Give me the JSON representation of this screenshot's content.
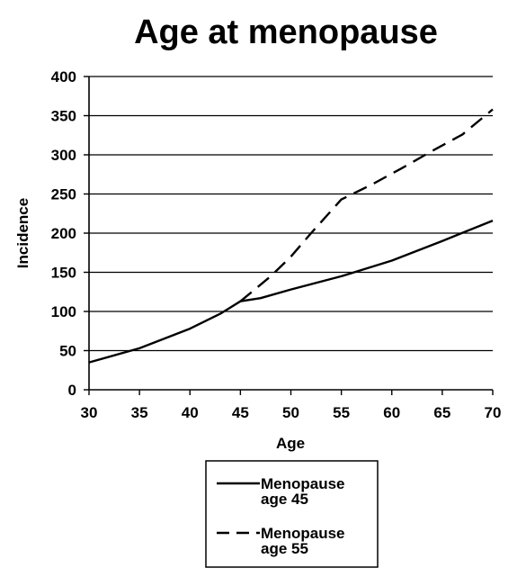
{
  "chart_data": {
    "type": "line",
    "title": "Age at menopause",
    "xlabel": "Age",
    "ylabel": "Incidence",
    "xlim": [
      30,
      70
    ],
    "ylim": [
      0,
      400
    ],
    "x_ticks": [
      30,
      35,
      40,
      45,
      50,
      55,
      60,
      65,
      70
    ],
    "y_ticks": [
      0,
      50,
      100,
      150,
      200,
      250,
      300,
      350,
      400
    ],
    "grid": "horizontal",
    "legend_position": "bottom",
    "series": [
      {
        "name": "Menopause age 45",
        "style": "solid",
        "color": "#000000",
        "x": [
          30,
          35,
          40,
          43,
          45,
          47,
          50,
          55,
          60,
          65,
          70
        ],
        "y": [
          35,
          53,
          78,
          97,
          113,
          117,
          128,
          145,
          165,
          190,
          216
        ]
      },
      {
        "name": "Menopause age 55",
        "style": "dashed",
        "color": "#000000",
        "x": [
          45,
          48,
          50,
          52,
          55,
          58,
          61,
          64,
          67,
          70
        ],
        "y": [
          113,
          145,
          170,
          200,
          243,
          262,
          283,
          305,
          326,
          358
        ]
      }
    ],
    "legend_lines": [
      [
        "Menopause",
        "age 45"
      ],
      [
        "Menopause",
        "age 55"
      ]
    ]
  }
}
